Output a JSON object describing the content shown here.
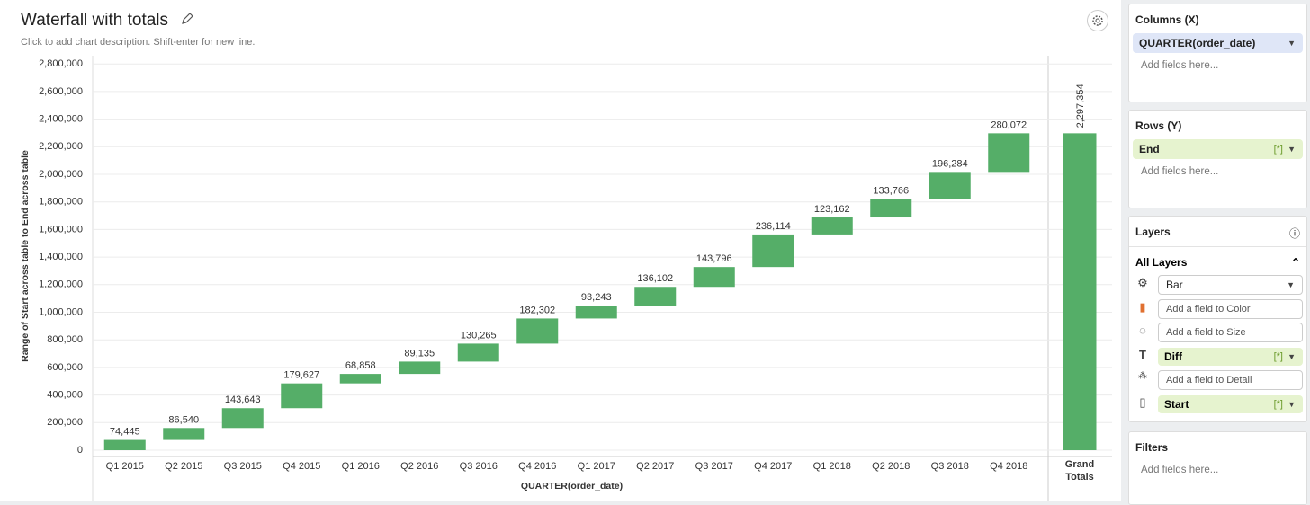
{
  "header": {
    "title": "Waterfall with totals",
    "description": "Click to add chart description. Shift-enter for new line."
  },
  "chart_data": {
    "type": "waterfall",
    "x_label": "QUARTER(order_date)",
    "y_label": "Range of Start across table to End across table",
    "categories": [
      "Q1 2015",
      "Q2 2015",
      "Q3 2015",
      "Q4 2015",
      "Q1 2016",
      "Q2 2016",
      "Q3 2016",
      "Q4 2016",
      "Q1 2017",
      "Q2 2017",
      "Q3 2017",
      "Q4 2017",
      "Q1 2018",
      "Q2 2018",
      "Q3 2018",
      "Q4 2018"
    ],
    "values": [
      74445,
      86540,
      143643,
      179627,
      68858,
      89135,
      130265,
      182302,
      93243,
      136102,
      143796,
      236114,
      123162,
      133766,
      196284,
      280072
    ],
    "value_labels": [
      "74,445",
      "86,540",
      "143,643",
      "179,627",
      "68,858",
      "89,135",
      "130,265",
      "182,302",
      "93,243",
      "136,102",
      "143,796",
      "236,114",
      "123,162",
      "133,766",
      "196,284",
      "280,072"
    ],
    "total": {
      "category": "Grand Totals",
      "value": 2297354,
      "label": "2,297,354"
    },
    "color": "#55ae68",
    "ylim": [
      0,
      2860000
    ],
    "yticks": [
      0,
      {
        "value": 200000,
        "label": "200,000"
      },
      {
        "value": 400000,
        "label": "400,000"
      },
      {
        "value": 600000,
        "label": "600,000"
      },
      {
        "value": 800000,
        "label": "800,000"
      },
      {
        "value": 1000000,
        "label": "1,000,000"
      },
      {
        "value": 1200000,
        "label": "1,200,000"
      },
      {
        "value": 1400000,
        "label": "1,400,000"
      },
      {
        "value": 1600000,
        "label": "1,600,000"
      },
      {
        "value": 1800000,
        "label": "1,800,000"
      },
      {
        "value": 2000000,
        "label": "2,000,000"
      },
      {
        "value": 2200000,
        "label": "2,200,000"
      },
      {
        "value": 2400000,
        "label": "2,400,000"
      },
      {
        "value": 2600000,
        "label": "2,600,000"
      },
      {
        "value": 2800000,
        "label": "2,800,000"
      }
    ],
    "grid": true
  },
  "panel": {
    "columns": {
      "title": "Columns (X)",
      "field": "QUARTER(order_date)",
      "placeholder": "Add fields here..."
    },
    "rows": {
      "title": "Rows (Y)",
      "field": "End",
      "badge": "[*]",
      "placeholder": "Add fields here..."
    },
    "layers": {
      "title": "Layers",
      "group": "All Layers",
      "mark": "Bar",
      "color": "Add a field to Color",
      "size": "Add a field to Size",
      "label_field": "Diff",
      "label_badge": "[*]",
      "detail": "Add a field to Detail",
      "path_field": "Start",
      "path_badge": "[*]"
    },
    "filters": {
      "title": "Filters",
      "placeholder": "Add fields here..."
    }
  }
}
